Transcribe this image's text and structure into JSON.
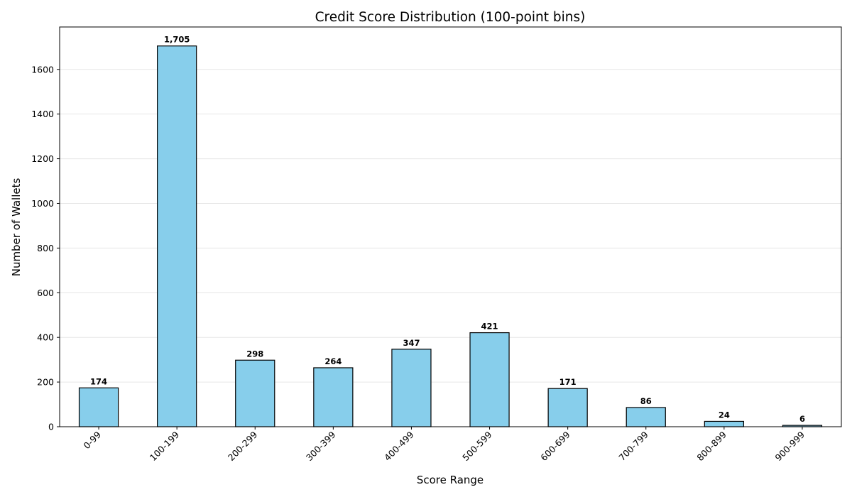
{
  "chart_data": {
    "type": "bar",
    "title": "Credit Score Distribution (100-point bins)",
    "xlabel": "Score Range",
    "ylabel": "Number of Wallets",
    "categories": [
      "0-99",
      "100-199",
      "200-299",
      "300-399",
      "400-499",
      "500-599",
      "600-699",
      "700-799",
      "800-899",
      "900-999"
    ],
    "values": [
      174,
      1705,
      298,
      264,
      347,
      421,
      171,
      86,
      24,
      6
    ],
    "value_labels": [
      "174",
      "1,705",
      "298",
      "264",
      "347",
      "421",
      "171",
      "86",
      "24",
      "6"
    ],
    "ylim": [
      0,
      1790
    ],
    "yticks": [
      0,
      200,
      400,
      600,
      800,
      1000,
      1200,
      1400,
      1600
    ],
    "grid": "y",
    "legend": "none",
    "bar_color": "#87ceeb",
    "bar_edge_color": "#000000"
  }
}
